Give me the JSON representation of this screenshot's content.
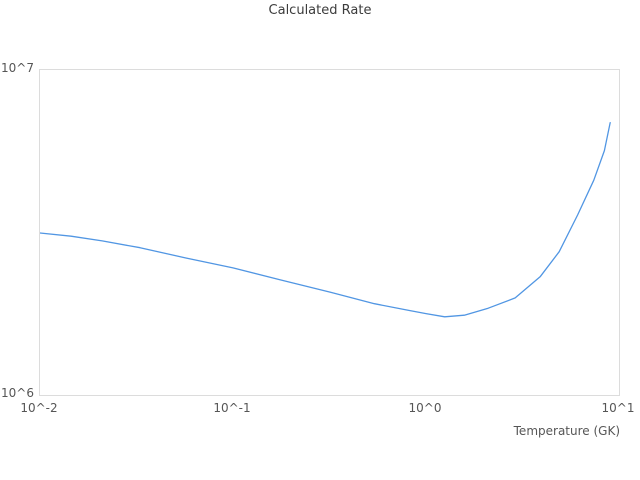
{
  "colors": {
    "line": "#5196e3",
    "plot_border": "#dcdcdc",
    "title_text": "#3c3c3c",
    "tick_text": "#565656",
    "background": "#ffffff"
  },
  "chart_data": {
    "type": "line",
    "title": "Calculated Rate",
    "xlabel": "Temperature (GK)",
    "ylabel": "",
    "x_scale": "log",
    "y_scale": "log",
    "xlim": [
      0.01,
      10
    ],
    "ylim": [
      1000000,
      10000000
    ],
    "grid": false,
    "legend": false,
    "x_ticks": [
      {
        "value": 0.01,
        "label": "10^-2"
      },
      {
        "value": 0.1,
        "label": "10^-1"
      },
      {
        "value": 1,
        "label": "10^0"
      },
      {
        "value": 10,
        "label": "10^1"
      }
    ],
    "y_ticks": [
      {
        "value": 1000000,
        "label": "10^6"
      },
      {
        "value": 10000000,
        "label": "10^7"
      }
    ],
    "series": [
      {
        "name": "Calculated Rate",
        "x": [
          0.01,
          0.0145,
          0.021,
          0.033,
          0.057,
          0.1,
          0.176,
          0.32,
          0.54,
          0.82,
          1.0,
          1.25,
          1.58,
          2.1,
          2.9,
          3.9,
          4.9,
          6.1,
          7.4,
          8.4,
          9.0
        ],
        "y": [
          3150000,
          3080000,
          2980000,
          2840000,
          2640000,
          2460000,
          2260000,
          2070000,
          1910000,
          1820000,
          1780000,
          1740000,
          1760000,
          1850000,
          1990000,
          2310000,
          2760000,
          3580000,
          4580000,
          5650000,
          6890000
        ]
      }
    ]
  }
}
